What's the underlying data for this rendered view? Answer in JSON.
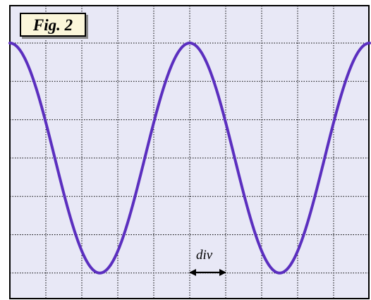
{
  "figure": {
    "label": "Fig. 2",
    "div_label": "div"
  },
  "scope": {
    "h_divisions": 10,
    "v_divisions": 7,
    "grid_color": "#000000",
    "background_color": "#e8e8f6",
    "border_color": "#000000"
  },
  "waveform": {
    "type": "cosine",
    "color": "#5b2fbf",
    "period_div": 5,
    "phase_max_at_div": 0,
    "max_div_from_top": 1,
    "min_div_from_top": 7,
    "x_end_div": 10
  }
}
